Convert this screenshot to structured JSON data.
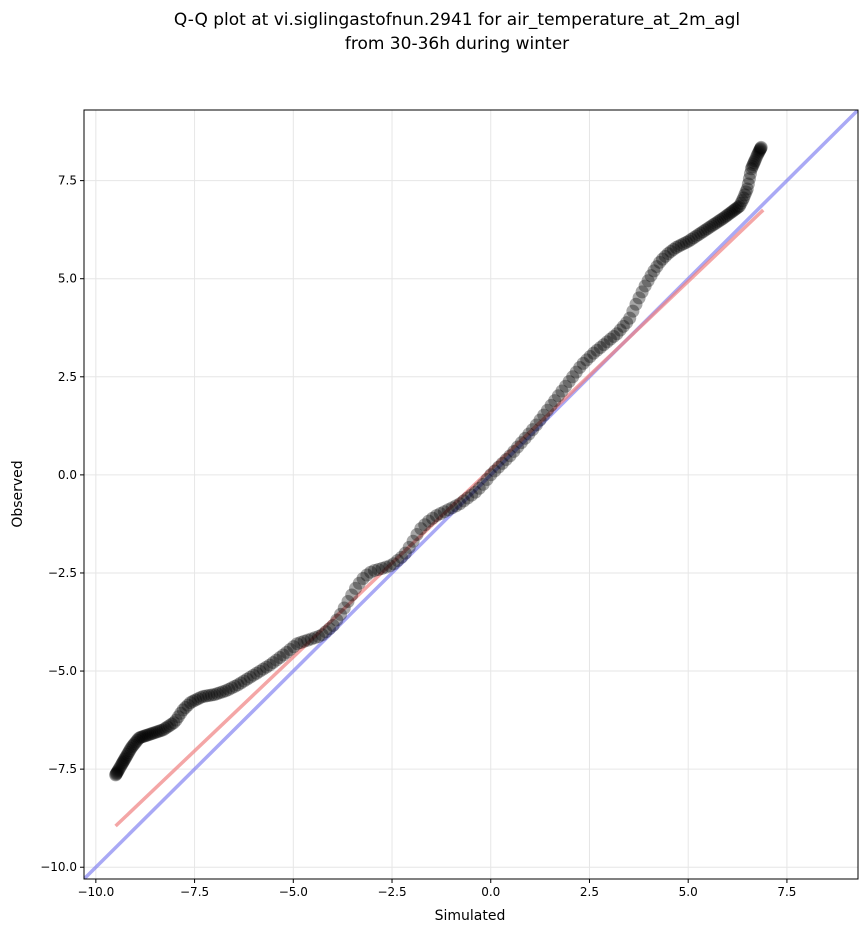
{
  "chart_data": {
    "type": "scatter",
    "title_lines": [
      "Q-Q plot at vi.siglingastofnun.2941 for air_temperature_at_2m_agl",
      "from 30-36h during winter"
    ],
    "xlabel": "Simulated",
    "ylabel": "Observed",
    "xlim": [
      -10.3,
      9.3
    ],
    "ylim": [
      -10.3,
      9.3
    ],
    "grid": true,
    "xticks": [
      -10.0,
      -7.5,
      -5.0,
      -2.5,
      0.0,
      2.5,
      5.0,
      7.5
    ],
    "yticks": [
      -10.0,
      -7.5,
      -5.0,
      -2.5,
      0.0,
      2.5,
      5.0,
      7.5
    ],
    "xtick_labels": [
      "−10.0",
      "−7.5",
      "−5.0",
      "−2.5",
      "0.0",
      "2.5",
      "5.0",
      "7.5"
    ],
    "ytick_labels": [
      "−10.0",
      "−7.5",
      "−5.0",
      "−2.5",
      "0.0",
      "2.5",
      "5.0",
      "7.5"
    ],
    "colors": {
      "points": "#000000",
      "identity_line": "#7b7bf0",
      "fit_line": "#f08080",
      "grid": "#e6e6e6"
    },
    "identity_line": {
      "x": [
        -10.3,
        9.3
      ],
      "y": [
        -10.3,
        9.3
      ]
    },
    "fit_line": {
      "x": [
        -9.5,
        6.9
      ],
      "y": [
        -8.95,
        6.75
      ]
    },
    "qq_curve": {
      "x": [
        -9.5,
        -9.3,
        -9.1,
        -8.9,
        -8.6,
        -8.3,
        -8.0,
        -7.8,
        -7.6,
        -7.3,
        -7.0,
        -6.7,
        -6.4,
        -6.0,
        -5.6,
        -5.2,
        -4.9,
        -4.6,
        -4.3,
        -4.0,
        -3.8,
        -3.6,
        -3.4,
        -3.2,
        -3.0,
        -2.8,
        -2.5,
        -2.2,
        -2.0,
        -1.8,
        -1.6,
        -1.4,
        -1.2,
        -1.0,
        -0.8,
        -0.6,
        -0.4,
        -0.2,
        0.0,
        0.2,
        0.5,
        0.8,
        1.1,
        1.4,
        1.7,
        2.0,
        2.3,
        2.6,
        2.9,
        3.2,
        3.5,
        3.7,
        3.9,
        4.1,
        4.3,
        4.5,
        4.7,
        5.0,
        5.3,
        5.6,
        5.9,
        6.1,
        6.3,
        6.4,
        6.5,
        6.6,
        6.75,
        6.85
      ],
      "y": [
        -7.65,
        -7.3,
        -6.95,
        -6.7,
        -6.6,
        -6.5,
        -6.3,
        -6.0,
        -5.8,
        -5.65,
        -5.6,
        -5.5,
        -5.35,
        -5.1,
        -4.85,
        -4.55,
        -4.3,
        -4.2,
        -4.1,
        -3.85,
        -3.55,
        -3.2,
        -2.85,
        -2.6,
        -2.45,
        -2.4,
        -2.3,
        -2.05,
        -1.75,
        -1.4,
        -1.2,
        -1.05,
        -0.95,
        -0.85,
        -0.75,
        -0.6,
        -0.45,
        -0.25,
        0.0,
        0.2,
        0.5,
        0.85,
        1.2,
        1.6,
        2.0,
        2.4,
        2.8,
        3.1,
        3.35,
        3.6,
        3.95,
        4.4,
        4.8,
        5.15,
        5.45,
        5.65,
        5.8,
        5.95,
        6.15,
        6.35,
        6.55,
        6.7,
        6.85,
        7.05,
        7.3,
        7.8,
        8.15,
        8.35
      ]
    }
  }
}
